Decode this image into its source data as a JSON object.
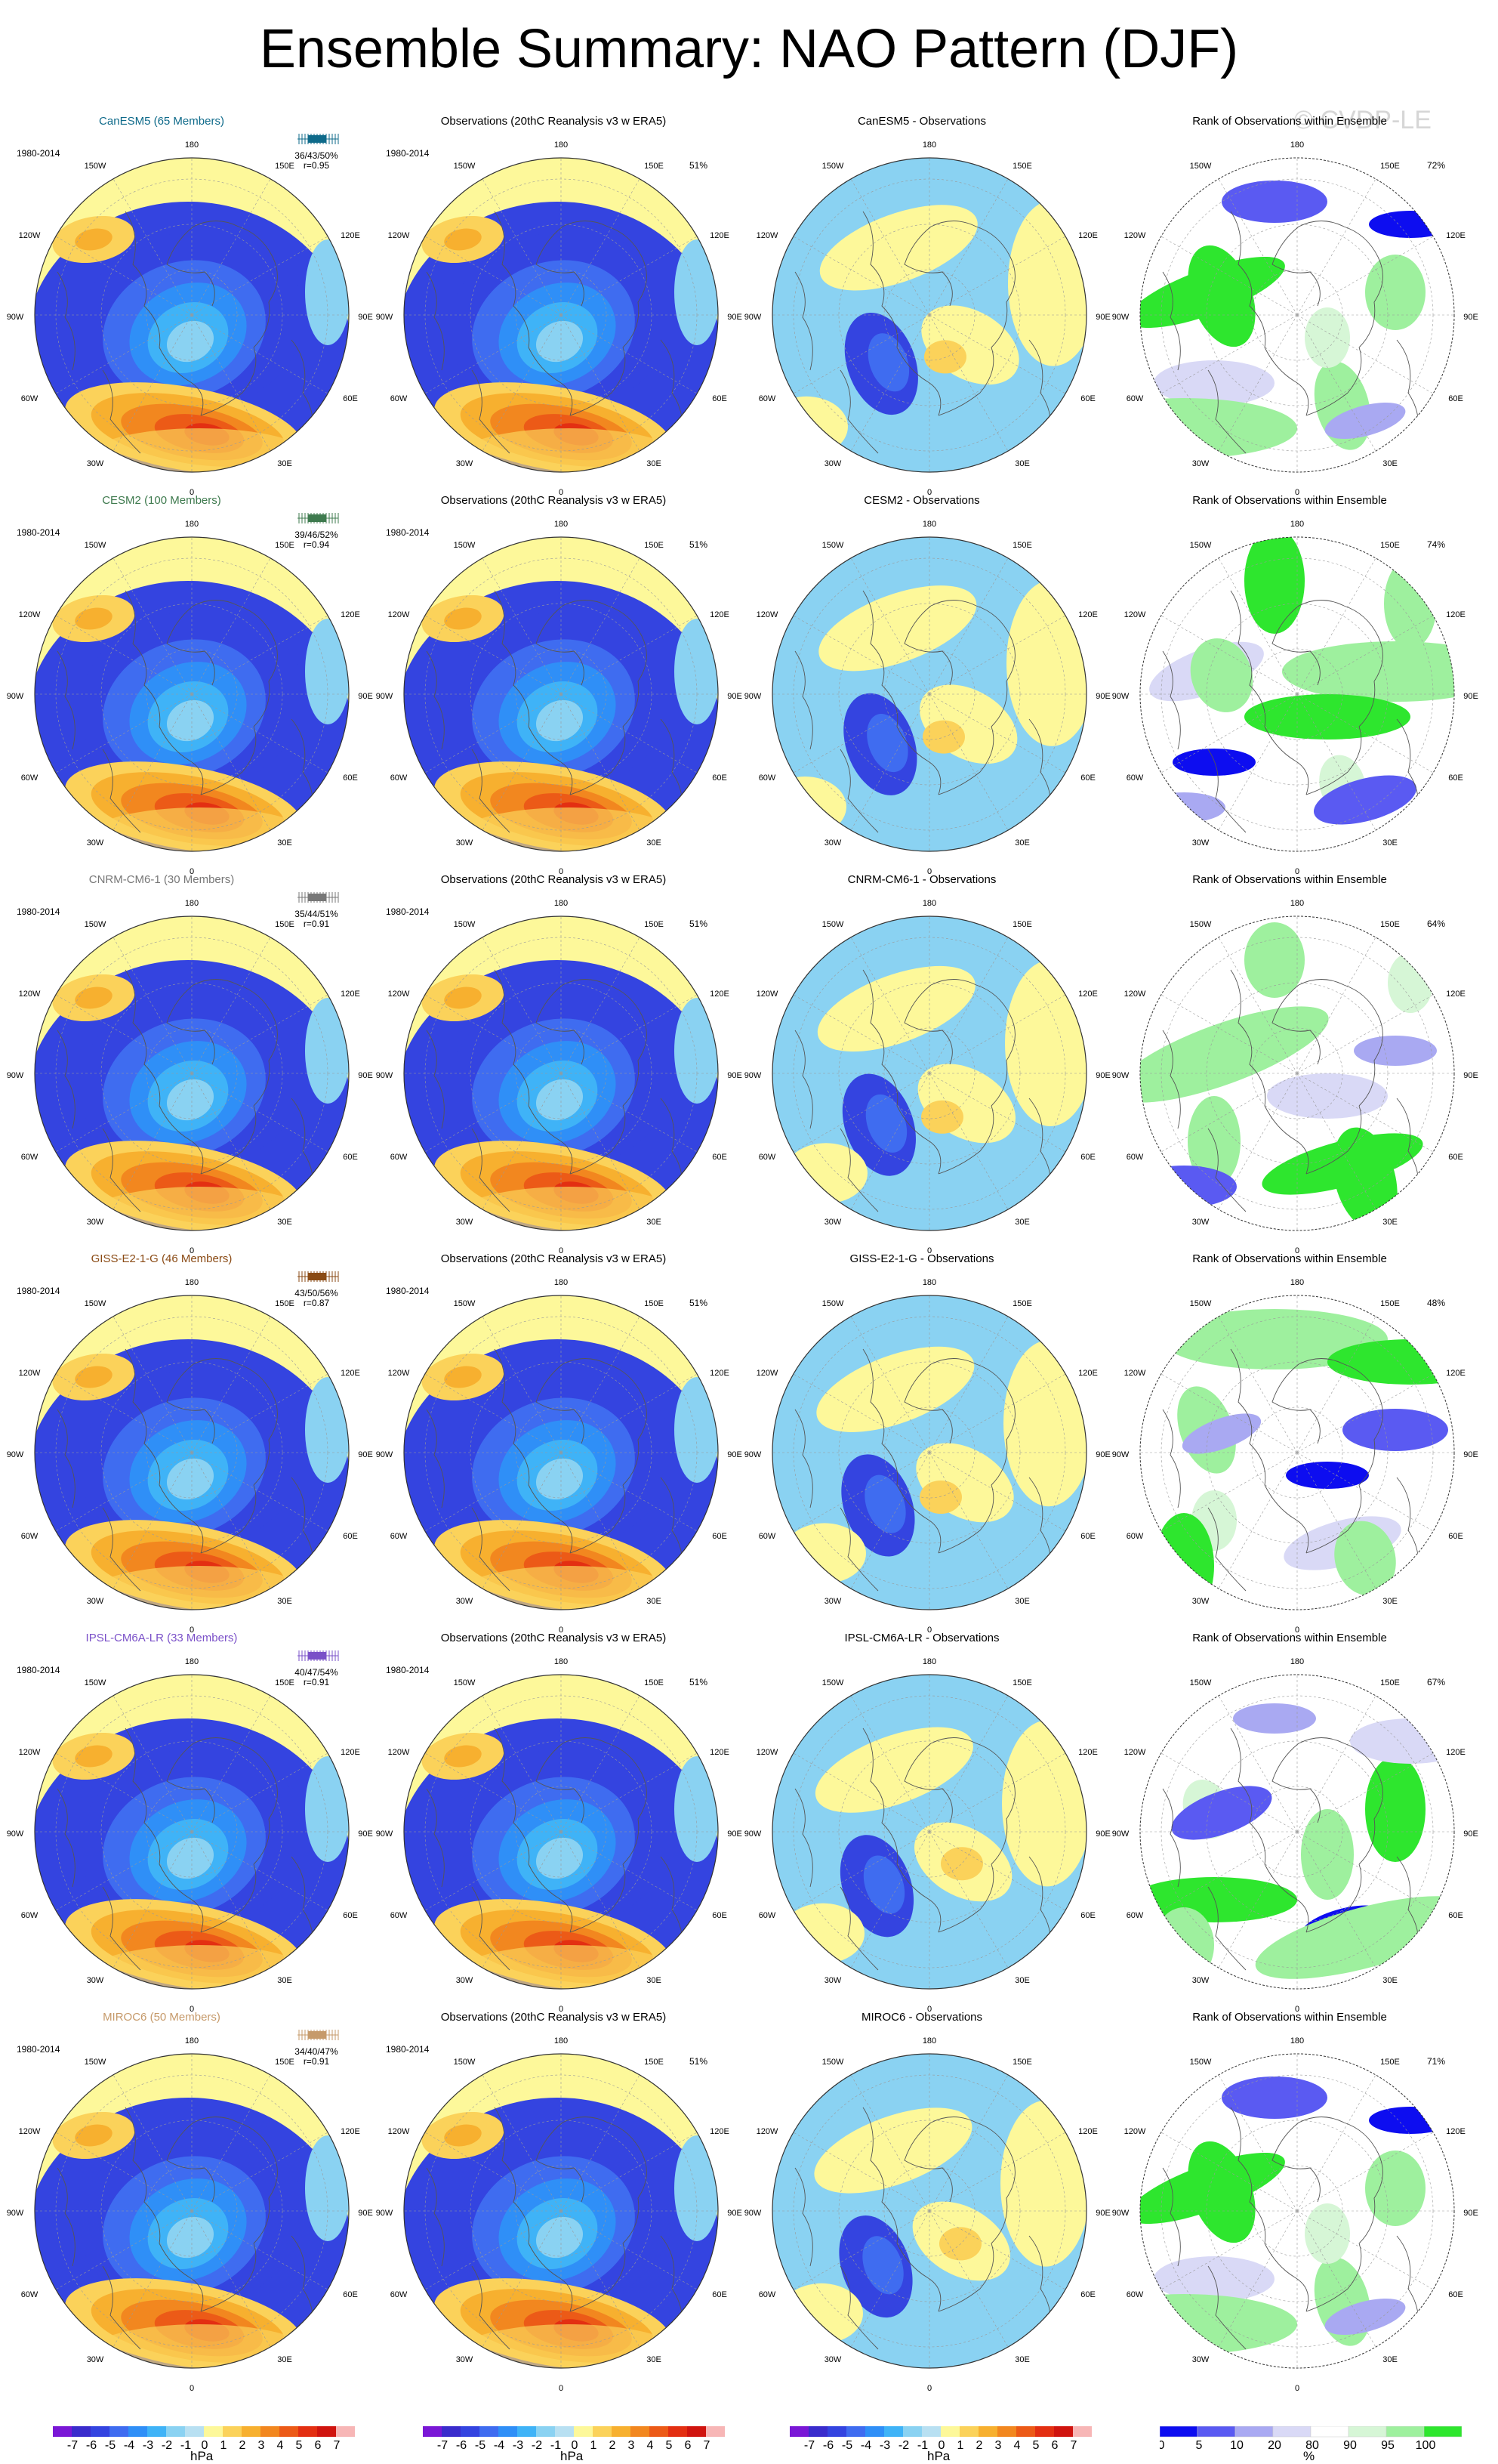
{
  "title": "Ensemble Summary: NAO Pattern (DJF)",
  "watermark": "© CVDP-LE",
  "period": "1980-2014",
  "lon_labels": [
    "180",
    "150E",
    "120E",
    "90E",
    "60E",
    "30E",
    "0",
    "30W",
    "60W",
    "90W",
    "120W",
    "150W"
  ],
  "column_titles": {
    "observations": "Observations (20thC Reanalysis v3 w ERA5)",
    "rank": "Rank of Observations within Ensemble"
  },
  "colors": {
    "neg": [
      "#7a17d6",
      "#3a2ccc",
      "#3444e0",
      "#3f6cf0",
      "#2f8ff7",
      "#3fb3f7",
      "#8ad2f2",
      "#b8e0f2"
    ],
    "pos": [
      "#fdf89a",
      "#fbd25a",
      "#f7b02f",
      "#f2871f",
      "#ec5a17",
      "#e32f12",
      "#d0140f",
      "#f7b6b6"
    ],
    "rank": [
      "#0d0df0",
      "#5a5af2",
      "#a9a9f2",
      "#d9d9f6",
      "#ffffff",
      "#d6f6d6",
      "#9ef09e",
      "#2ee62e"
    ]
  },
  "rows": [
    {
      "model": "CanESM5 (65 Members)",
      "model_color": "#0e6a8a",
      "ens_stats": [
        "36/43/50%",
        "r=0.95"
      ],
      "diff_title": "CanESM5 - Observations",
      "obs_pct": "51%",
      "rank_pct": "72%"
    },
    {
      "model": "CESM2 (100 Members)",
      "model_color": "#3e7a4e",
      "ens_stats": [
        "39/46/52%",
        "r=0.94"
      ],
      "diff_title": "CESM2 - Observations",
      "obs_pct": "51%",
      "rank_pct": "74%"
    },
    {
      "model": "CNRM-CM6-1 (30 Members)",
      "model_color": "#777777",
      "ens_stats": [
        "35/44/51%",
        "r=0.91"
      ],
      "diff_title": "CNRM-CM6-1 - Observations",
      "obs_pct": "51%",
      "rank_pct": "64%"
    },
    {
      "model": "GISS-E2-1-G (46 Members)",
      "model_color": "#8a4a14",
      "ens_stats": [
        "43/50/56%",
        "r=0.87"
      ],
      "diff_title": "GISS-E2-1-G - Observations",
      "obs_pct": "51%",
      "rank_pct": "48%"
    },
    {
      "model": "IPSL-CM6A-LR (33 Members)",
      "model_color": "#7a50c8",
      "ens_stats": [
        "40/47/54%",
        "r=0.91"
      ],
      "diff_title": "IPSL-CM6A-LR - Observations",
      "obs_pct": "51%",
      "rank_pct": "67%"
    },
    {
      "model": "MIROC6 (50 Members)",
      "model_color": "#c69a6a",
      "ens_stats": [
        "34/40/47%",
        "r=0.91"
      ],
      "diff_title": "MIROC6 - Observations",
      "obs_pct": "51%",
      "rank_pct": "71%"
    }
  ],
  "chart_data": {
    "type": "heatmap",
    "projection": "polar stereographic, Northern Hemisphere",
    "grid": "4 columns x 6 rows of polar maps",
    "colorbar_hpa": {
      "ticks": [
        "-7",
        "-6",
        "-5",
        "-4",
        "-3",
        "-2",
        "-1",
        "0",
        "1",
        "2",
        "3",
        "4",
        "5",
        "6",
        "7"
      ],
      "unit": "hPa"
    },
    "colorbar_rank": {
      "ticks": [
        "0",
        "5",
        "10",
        "20",
        "80",
        "90",
        "95",
        "100"
      ],
      "unit": "%"
    }
  }
}
